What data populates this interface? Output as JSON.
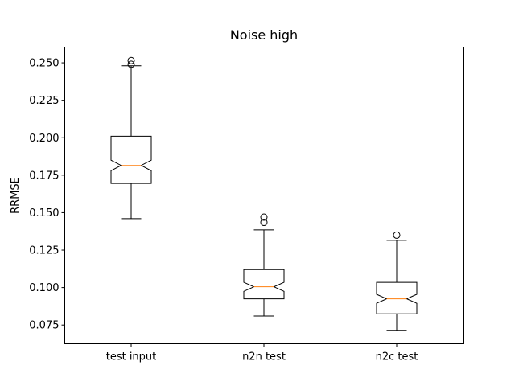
{
  "chart_data": {
    "type": "boxplot",
    "title": "Noise high",
    "xlabel": "",
    "ylabel": "RRMSE",
    "ylim": [
      0.0625,
      0.2605
    ],
    "yticks": [
      0.075,
      0.1,
      0.125,
      0.15,
      0.175,
      0.2,
      0.225,
      0.25
    ],
    "ytick_labels": [
      "0.075",
      "0.100",
      "0.125",
      "0.150",
      "0.175",
      "0.200",
      "0.225",
      "0.250"
    ],
    "categories": [
      "test input",
      "n2n test",
      "n2c test"
    ],
    "notched": true,
    "grid": false,
    "colors": {
      "box": "#000000",
      "median": "#ff7f0e"
    },
    "boxes": [
      {
        "label": "test input",
        "whisker_low": 0.146,
        "q1": 0.1695,
        "notch_low": 0.178,
        "median": 0.1815,
        "notch_high": 0.185,
        "q3": 0.201,
        "whisker_high": 0.248,
        "outliers": [
          0.249,
          0.2515
        ]
      },
      {
        "label": "n2n test",
        "whisker_low": 0.081,
        "q1": 0.0925,
        "notch_low": 0.0975,
        "median": 0.1005,
        "notch_high": 0.1035,
        "q3": 0.112,
        "whisker_high": 0.1385,
        "outliers": [
          0.1435,
          0.147
        ]
      },
      {
        "label": "n2c test",
        "whisker_low": 0.0715,
        "q1": 0.0825,
        "notch_low": 0.0895,
        "median": 0.0925,
        "notch_high": 0.0955,
        "q3": 0.1035,
        "whisker_high": 0.1315,
        "outliers": [
          0.135
        ]
      }
    ]
  }
}
